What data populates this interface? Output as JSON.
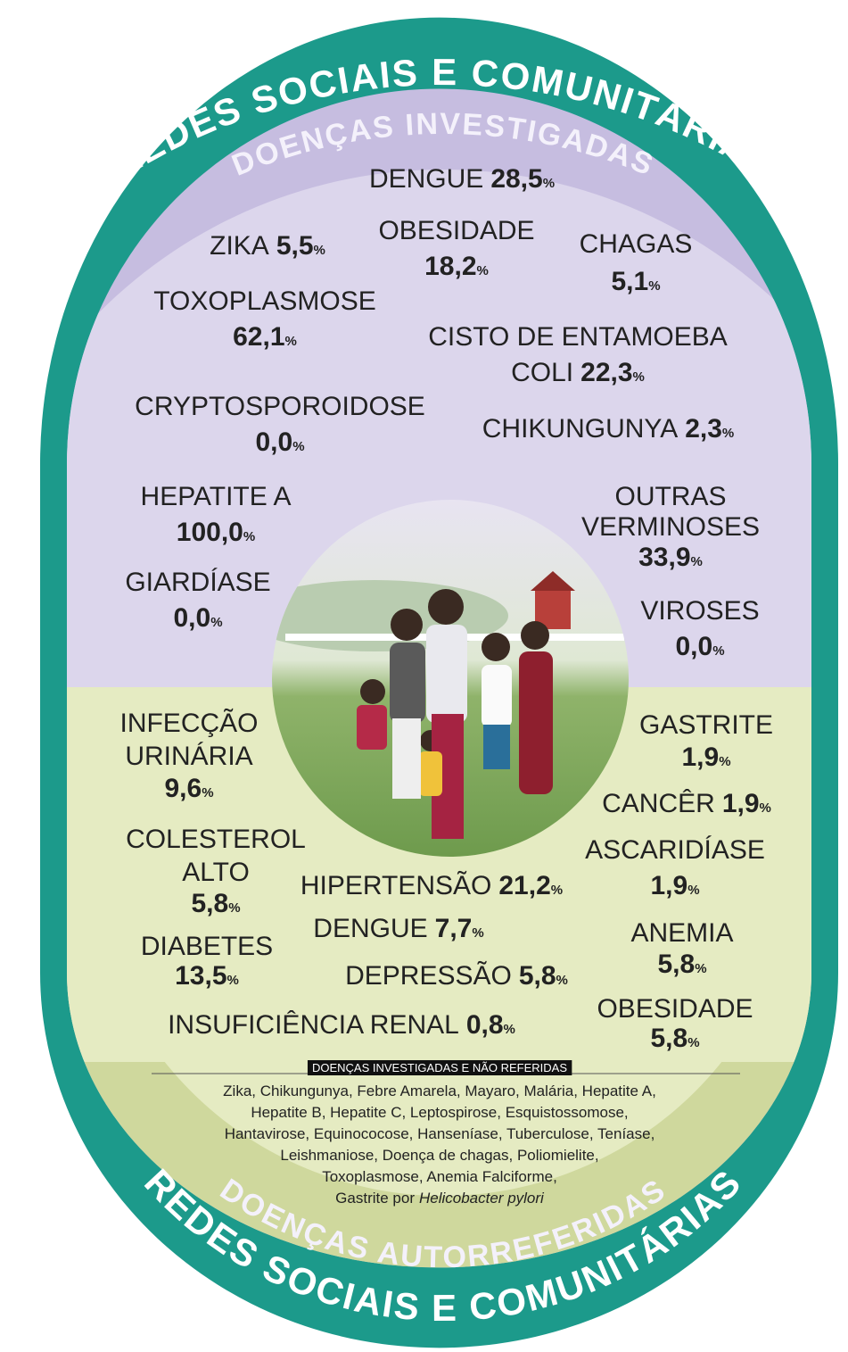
{
  "top_ring": "REDES SOCIAIS E COMUNITÁRIAS",
  "top_section": "DOENÇAS INVESTIGADAS",
  "bottom_section": "DOENÇAS AUTORREFERIDAS",
  "bottom_ring": "REDES SOCIAIS E COMUNITÁRIAS",
  "unit": "%",
  "investigated": [
    {
      "name": [
        "DENGUE"
      ],
      "value": "28,5"
    },
    {
      "name": [
        "ZIKA"
      ],
      "value": "5,5"
    },
    {
      "name": [
        "OBESIDADE"
      ],
      "value": "18,2"
    },
    {
      "name": [
        "CHAGAS"
      ],
      "value": "5,1"
    },
    {
      "name": [
        "TOXOPLASMOSE"
      ],
      "value": "62,1"
    },
    {
      "name": [
        "CISTO DE ENTAMOEBA",
        "COLI"
      ],
      "value": "22,3"
    },
    {
      "name": [
        "CRYPTOSPOROIDOSE"
      ],
      "value": "0,0"
    },
    {
      "name": [
        "CHIKUNGUNYA"
      ],
      "value": "2,3"
    },
    {
      "name": [
        "HEPATITE A"
      ],
      "value": "100,0"
    },
    {
      "name": [
        "OUTRAS",
        "VERMINOSES"
      ],
      "value": "33,9"
    },
    {
      "name": [
        "GIARDÍASE"
      ],
      "value": "0,0"
    },
    {
      "name": [
        "VIROSES"
      ],
      "value": "0,0"
    }
  ],
  "self_reported": [
    {
      "name": [
        "INFECÇÃO",
        "URINÁRIA"
      ],
      "value": "9,6"
    },
    {
      "name": [
        "GASTRITE"
      ],
      "value": "1,9"
    },
    {
      "name": [
        "CANCÊR"
      ],
      "value": "1,9"
    },
    {
      "name": [
        "COLESTEROL",
        "ALTO"
      ],
      "value": "5,8"
    },
    {
      "name": [
        "ASCARIDÍASE"
      ],
      "value": "1,9"
    },
    {
      "name": [
        "HIPERTENSÃO"
      ],
      "value": "21,2"
    },
    {
      "name": [
        "DENGUE"
      ],
      "value": "7,7"
    },
    {
      "name": [
        "ANEMIA"
      ],
      "value": "5,8"
    },
    {
      "name": [
        "DIABETES"
      ],
      "value": "13,5"
    },
    {
      "name": [
        "DEPRESSÃO"
      ],
      "value": "5,8"
    },
    {
      "name": [
        "INSUFICIÊNCIA RENAL"
      ],
      "value": "0,8"
    },
    {
      "name": [
        "OBESIDADE"
      ],
      "value": "5,8"
    }
  ],
  "note": {
    "title": "DOENÇAS INVESTIGADAS E NÃO REFERIDAS",
    "lines": [
      "Zika, Chikungunya, Febre Amarela, Mayaro, Malária, Hepatite A,",
      "Hepatite B, Hepatite C, Leptospirose, Esquistossomose,",
      "Hantavirose, Equinococose, Hanseníase, Tuberculose, Teníase,",
      "Leishmaniose, Doença de chagas, Poliomielite,",
      "Toxoplasmose, Anemia Falciforme,"
    ],
    "last": "Gastrite por",
    "last_italic": "Helicobacter pylori"
  }
}
